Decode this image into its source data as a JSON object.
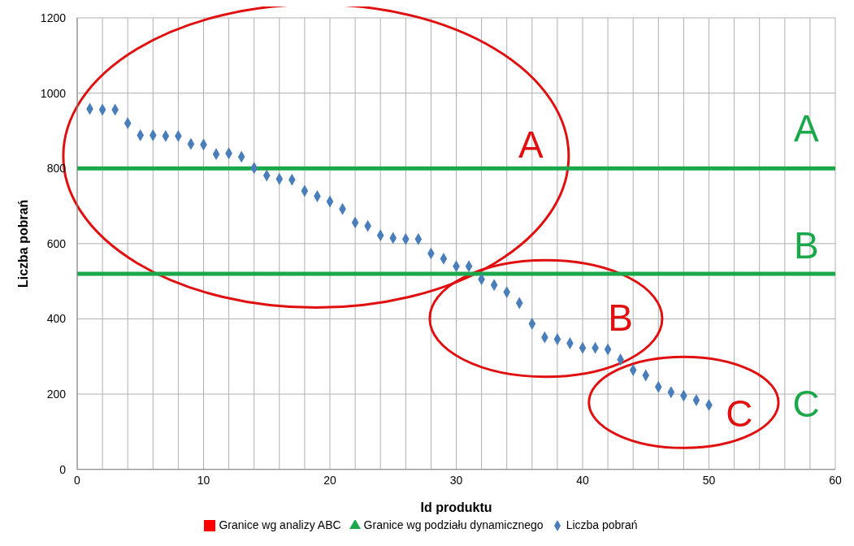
{
  "chart_data": {
    "type": "scatter",
    "xlabel": "Id produktu",
    "ylabel": "Liczba pobrań",
    "xlim": [
      0,
      60
    ],
    "ylim": [
      0,
      1200
    ],
    "xticks": [
      0,
      {
        "value": 2,
        "label": null
      },
      {
        "value": 4,
        "label": null
      },
      {
        "value": 6,
        "label": null
      },
      {
        "value": 8,
        "label": null
      },
      10,
      {
        "value": 12,
        "label": null
      },
      {
        "value": 14,
        "label": null
      },
      {
        "value": 16,
        "label": null
      },
      {
        "value": 18,
        "label": null
      },
      20,
      {
        "value": 22,
        "label": null
      },
      {
        "value": 24,
        "label": null
      },
      {
        "value": 26,
        "label": null
      },
      {
        "value": 28,
        "label": null
      },
      30,
      {
        "value": 32,
        "label": null
      },
      {
        "value": 34,
        "label": null
      },
      {
        "value": 36,
        "label": null
      },
      {
        "value": 38,
        "label": null
      },
      40,
      {
        "value": 42,
        "label": null
      },
      {
        "value": 44,
        "label": null
      },
      {
        "value": 46,
        "label": null
      },
      {
        "value": 48,
        "label": null
      },
      50,
      {
        "value": 52,
        "label": null
      },
      {
        "value": 54,
        "label": null
      },
      {
        "value": 56,
        "label": null
      },
      {
        "value": 58,
        "label": null
      },
      60
    ],
    "yticks": [
      0,
      200,
      400,
      600,
      800,
      1000,
      1200
    ],
    "grid": true,
    "legend": "bottom",
    "series": [
      {
        "name": "Liczba pobrań",
        "marker": "diamond",
        "color": "#4a7ebb",
        "x": [
          1,
          2,
          3,
          4,
          5,
          6,
          7,
          8,
          9,
          10,
          11,
          12,
          13,
          14,
          15,
          16,
          17,
          18,
          19,
          20,
          21,
          22,
          23,
          24,
          25,
          26,
          27,
          28,
          29,
          30,
          31,
          32,
          33,
          34,
          35,
          36,
          37,
          38,
          39,
          40,
          41,
          42,
          43,
          44,
          45,
          46,
          47,
          48,
          49,
          50
        ],
        "values": [
          958,
          956,
          956,
          920,
          888,
          888,
          886,
          886,
          865,
          863,
          838,
          840,
          831,
          801,
          781,
          772,
          770,
          740,
          726,
          712,
          692,
          656,
          647,
          622,
          615,
          612,
          612,
          574,
          560,
          540,
          540,
          505,
          490,
          471,
          442,
          387,
          351,
          346,
          335,
          323,
          323,
          319,
          292,
          264,
          250,
          219,
          205,
          196,
          184,
          171
        ]
      },
      {
        "name": "Granice wg analizy ABC",
        "marker": "square",
        "color": "#ff0000"
      },
      {
        "name": "Granice wg podziału dynamicznego",
        "marker": "triangle",
        "color": "#1aa84a"
      }
    ],
    "ref_lines": [
      {
        "axis": "y",
        "value": 800,
        "color": "#1aa84a"
      },
      {
        "axis": "y",
        "value": 520,
        "color": "#1aa84a"
      }
    ],
    "annotations": [
      "A",
      "B",
      "C",
      "A",
      "B",
      "C"
    ]
  }
}
